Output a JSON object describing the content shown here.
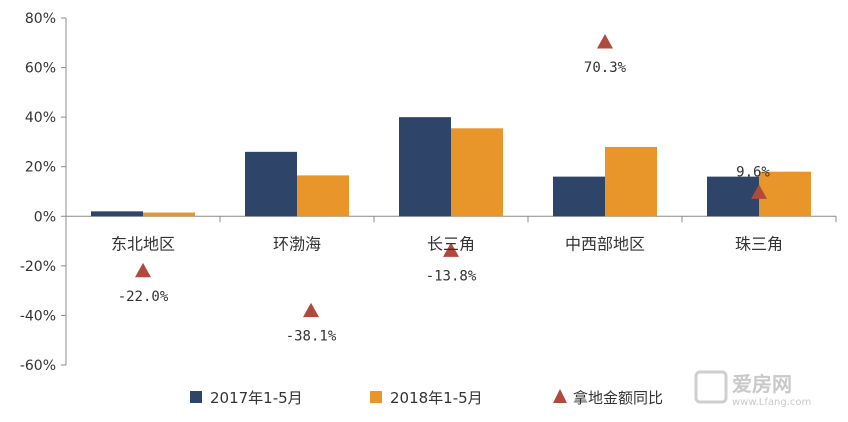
{
  "chart_data": {
    "type": "bar",
    "categories": [
      "东北地区",
      "环渤海",
      "长三角",
      "中西部地区",
      "珠三角"
    ],
    "series": [
      {
        "name": "2017年1-5月",
        "kind": "bar",
        "color": "#2e4468",
        "values": [
          2,
          26,
          40,
          16,
          16
        ]
      },
      {
        "name": "2018年1-5月",
        "kind": "bar",
        "color": "#e8952a",
        "values": [
          1.5,
          16.5,
          35.5,
          28,
          18
        ]
      },
      {
        "name": "拿地金额同比",
        "kind": "marker",
        "marker": "triangle",
        "color": "#b04a3c",
        "values": [
          -22.0,
          -38.1,
          -13.8,
          70.3,
          9.6
        ],
        "labels": [
          "-22.0%",
          "-38.1%",
          "-13.8%",
          "70.3%",
          "9.6%"
        ]
      }
    ],
    "y_ticks": [
      "80%",
      "60%",
      "40%",
      "20%",
      "0%",
      "-20%",
      "-40%",
      "-60%"
    ],
    "ylim": [
      -60,
      80
    ],
    "grid": false,
    "legend_position": "bottom"
  },
  "watermark": {
    "name": "爱房网",
    "url": "www.Lfang.com"
  }
}
